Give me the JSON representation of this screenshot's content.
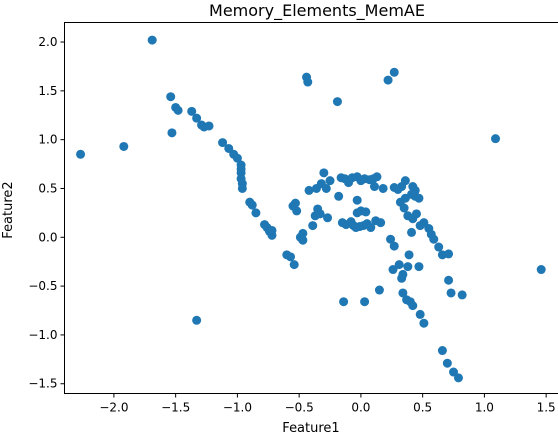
{
  "chart_data": {
    "type": "scatter",
    "title": "Memory_Elements_MemAE",
    "xlabel": "Feature1",
    "ylabel": "Feature2",
    "xlim": [
      -2.4,
      1.6
    ],
    "ylim": [
      -1.6,
      2.2
    ],
    "xticks": [
      -2.0,
      -1.5,
      -1.0,
      -0.5,
      0.0,
      0.5,
      1.0,
      1.5
    ],
    "yticks": [
      -1.5,
      -1.0,
      -0.5,
      0.0,
      0.5,
      1.0,
      1.5,
      2.0
    ],
    "xtick_labels": [
      "−2.0",
      "−1.5",
      "−1.0",
      "−0.5",
      "0.0",
      "0.5",
      "1.0",
      "1.5"
    ],
    "ytick_labels": [
      "−1.5",
      "−1.0",
      "−0.5",
      "0.0",
      "0.5",
      "1.0",
      "1.5",
      "2.0"
    ],
    "grid": false,
    "marker_color": "#1f77b4",
    "series": [
      {
        "points": [
          [
            -1.69,
            2.02
          ],
          [
            -0.44,
            1.64
          ],
          [
            -0.43,
            1.59
          ],
          [
            0.27,
            1.69
          ],
          [
            0.22,
            1.61
          ],
          [
            -0.19,
            1.39
          ],
          [
            1.09,
            1.01
          ],
          [
            1.46,
            -0.33
          ],
          [
            -2.27,
            0.85
          ],
          [
            -1.92,
            0.93
          ],
          [
            -1.33,
            -0.85
          ],
          [
            -1.54,
            1.44
          ],
          [
            -1.5,
            1.33
          ],
          [
            -1.48,
            1.3
          ],
          [
            -1.53,
            1.07
          ],
          [
            -1.37,
            1.29
          ],
          [
            -1.33,
            1.22
          ],
          [
            -1.29,
            1.15
          ],
          [
            -1.27,
            1.13
          ],
          [
            -1.23,
            1.14
          ],
          [
            -1.12,
            0.97
          ],
          [
            -1.07,
            0.91
          ],
          [
            -1.03,
            0.85
          ],
          [
            -1.0,
            0.81
          ],
          [
            -0.97,
            0.74
          ],
          [
            -0.97,
            0.7
          ],
          [
            -0.97,
            0.66
          ],
          [
            -0.97,
            0.6
          ],
          [
            -0.96,
            0.55
          ],
          [
            -0.96,
            0.5
          ],
          [
            -0.9,
            0.36
          ],
          [
            -0.88,
            0.33
          ],
          [
            -0.85,
            0.25
          ],
          [
            -0.78,
            0.13
          ],
          [
            -0.76,
            0.1
          ],
          [
            -0.74,
            0.06
          ],
          [
            -0.72,
            0.02
          ],
          [
            -0.72,
            0.07
          ],
          [
            -0.6,
            -0.18
          ],
          [
            -0.57,
            -0.2
          ],
          [
            -0.54,
            -0.28
          ],
          [
            -0.52,
            0.27
          ],
          [
            -0.55,
            0.32
          ],
          [
            -0.53,
            0.35
          ],
          [
            -0.49,
            0.0
          ],
          [
            -0.47,
            -0.03
          ],
          [
            -0.47,
            0.04
          ],
          [
            -0.42,
            0.48
          ],
          [
            -0.36,
            0.5
          ],
          [
            -0.32,
            0.55
          ],
          [
            -0.3,
            0.66
          ],
          [
            -0.25,
            0.58
          ],
          [
            -0.28,
            0.5
          ],
          [
            -0.33,
            0.24
          ],
          [
            -0.35,
            0.29
          ],
          [
            -0.37,
            0.22
          ],
          [
            -0.39,
            0.12
          ],
          [
            -0.27,
            0.2
          ],
          [
            -0.16,
            0.61
          ],
          [
            -0.13,
            0.6
          ],
          [
            -0.1,
            0.56
          ],
          [
            -0.07,
            0.61
          ],
          [
            -0.03,
            0.62
          ],
          [
            0.0,
            0.58
          ],
          [
            0.03,
            0.6
          ],
          [
            0.07,
            0.59
          ],
          [
            0.1,
            0.6
          ],
          [
            0.13,
            0.62
          ],
          [
            -0.15,
            0.15
          ],
          [
            -0.12,
            0.13
          ],
          [
            -0.08,
            0.16
          ],
          [
            -0.06,
            0.12
          ],
          [
            -0.04,
            0.1
          ],
          [
            -0.01,
            0.11
          ],
          [
            0.02,
            0.12
          ],
          [
            0.05,
            0.14
          ],
          [
            0.08,
            0.1
          ],
          [
            0.12,
            0.17
          ],
          [
            0.16,
            0.15
          ],
          [
            -0.18,
            0.42
          ],
          [
            -0.03,
            0.38
          ],
          [
            0.0,
            0.27
          ],
          [
            -0.03,
            0.25
          ],
          [
            0.04,
            0.26
          ],
          [
            0.11,
            0.52
          ],
          [
            0.18,
            0.5
          ],
          [
            0.27,
            0.51
          ],
          [
            0.3,
            0.49
          ],
          [
            0.33,
            0.52
          ],
          [
            0.36,
            0.58
          ],
          [
            0.42,
            0.52
          ],
          [
            0.44,
            0.48
          ],
          [
            0.41,
            0.44
          ],
          [
            0.36,
            0.4
          ],
          [
            0.32,
            0.36
          ],
          [
            0.35,
            0.3
          ],
          [
            0.38,
            0.22
          ],
          [
            0.42,
            0.19
          ],
          [
            0.44,
            0.42
          ],
          [
            0.47,
            0.4
          ],
          [
            0.51,
            0.15
          ],
          [
            0.48,
            0.12
          ],
          [
            0.45,
            0.24
          ],
          [
            0.41,
            0.05
          ],
          [
            0.55,
            0.09
          ],
          [
            0.57,
            0.03
          ],
          [
            0.59,
            -0.02
          ],
          [
            0.63,
            -0.1
          ],
          [
            0.66,
            -0.18
          ],
          [
            0.71,
            -0.17
          ],
          [
            0.24,
            -0.02
          ],
          [
            0.27,
            -0.09
          ],
          [
            0.26,
            -0.33
          ],
          [
            0.31,
            -0.28
          ],
          [
            0.34,
            -0.38
          ],
          [
            0.33,
            -0.42
          ],
          [
            0.39,
            -0.18
          ],
          [
            0.38,
            -0.3
          ],
          [
            0.47,
            -0.3
          ],
          [
            0.34,
            -0.57
          ],
          [
            0.37,
            -0.64
          ],
          [
            0.4,
            -0.66
          ],
          [
            0.42,
            -0.7
          ],
          [
            0.48,
            -0.79
          ],
          [
            0.51,
            -0.88
          ],
          [
            0.71,
            -0.44
          ],
          [
            0.73,
            -0.57
          ],
          [
            0.82,
            -0.59
          ],
          [
            0.66,
            -1.16
          ],
          [
            0.7,
            -1.29
          ],
          [
            0.75,
            -1.38
          ],
          [
            0.79,
            -1.44
          ],
          [
            -0.14,
            -0.66
          ],
          [
            0.03,
            -0.66
          ],
          [
            0.15,
            -0.54
          ]
        ]
      }
    ]
  }
}
